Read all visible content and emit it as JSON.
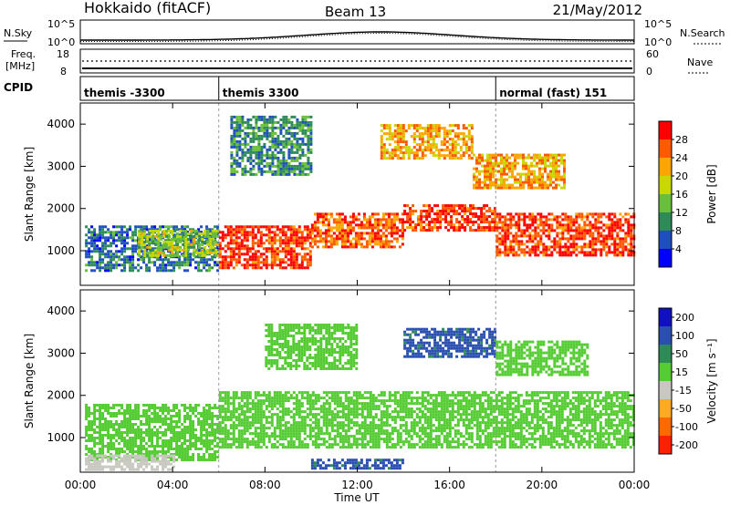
{
  "header": {
    "station": "Hokkaido (fitACF)",
    "beam": "Beam 13",
    "date": "21/May/2012"
  },
  "noise_panel": {
    "left_label": "N.Sky",
    "left_ticks": [
      "10^5",
      "10^0"
    ],
    "right_ticks": [
      "10^5",
      "10^0"
    ],
    "right_label": "N.Search"
  },
  "freq_panel": {
    "left_label_1": "Freq.",
    "left_label_2": "[MHz]",
    "left_ticks": [
      "18",
      "8"
    ],
    "right_ticks": [
      "60",
      "0"
    ],
    "right_label": "Nave"
  },
  "cpid": {
    "label": "CPID",
    "segments": [
      {
        "label": "themis -3300",
        "start_hour": 0
      },
      {
        "label": "themis 3300",
        "start_hour": 6
      },
      {
        "label": "normal (fast) 151",
        "start_hour": 18
      }
    ]
  },
  "chart_data": [
    {
      "type": "heatmap",
      "parameter": "power",
      "xlabel": "",
      "ylabel": "Slant Range [km]",
      "x_range_hours": [
        0,
        24
      ],
      "y_range_km": [
        180,
        4500
      ],
      "y_ticks": [
        1000,
        2000,
        3000,
        4000
      ],
      "colorbar": {
        "label": "Power [dB]",
        "ticks": [
          4,
          8,
          12,
          16,
          20,
          24,
          28
        ],
        "range": [
          0,
          32
        ],
        "colors": [
          "#0000ff",
          "#1f4fbf",
          "#2e8b57",
          "#6abf3a",
          "#c8d800",
          "#ffa500",
          "#ff5a00",
          "#ff0000"
        ]
      },
      "regions": [
        {
          "t0": 0.2,
          "t1": 6,
          "r0": 500,
          "r1": 1600,
          "value": 8
        },
        {
          "t0": 2.5,
          "t1": 6,
          "r0": 900,
          "r1": 1500,
          "value": 16
        },
        {
          "t0": 6,
          "t1": 10,
          "r0": 600,
          "r1": 1600,
          "value": 28
        },
        {
          "t0": 10,
          "t1": 14,
          "r0": 1100,
          "r1": 1900,
          "value": 26
        },
        {
          "t0": 14,
          "t1": 18,
          "r0": 1500,
          "r1": 2100,
          "value": 28
        },
        {
          "t0": 18,
          "t1": 24,
          "r0": 900,
          "r1": 1900,
          "value": 28
        },
        {
          "t0": 13,
          "t1": 17,
          "r0": 3200,
          "r1": 4000,
          "value": 22
        },
        {
          "t0": 17,
          "t1": 21,
          "r0": 2500,
          "r1": 3300,
          "value": 22
        },
        {
          "t0": 6.5,
          "t1": 10,
          "r0": 2800,
          "r1": 4200,
          "value": 10
        }
      ]
    },
    {
      "type": "heatmap",
      "parameter": "velocity",
      "xlabel": "Time UT",
      "ylabel": "Slant Range [km]",
      "x_range_hours": [
        0,
        24
      ],
      "x_ticks": [
        "00:00",
        "04:00",
        "08:00",
        "12:00",
        "16:00",
        "20:00",
        "00:00"
      ],
      "y_range_km": [
        180,
        4500
      ],
      "y_ticks": [
        1000,
        2000,
        3000,
        4000
      ],
      "colorbar": {
        "label": "Velocity [m s⁻¹]",
        "ticks": [
          200,
          100,
          50,
          15,
          -15,
          -50,
          -100,
          -200
        ],
        "colors": [
          "#1010c0",
          "#2a4fb0",
          "#2e8b57",
          "#55cc33",
          "#c8c8c0",
          "#ffaa22",
          "#ff6a00",
          "#ff2000"
        ]
      },
      "regions": [
        {
          "t0": 0.2,
          "t1": 6,
          "r0": 500,
          "r1": 1800,
          "value": 0
        },
        {
          "t0": 6,
          "t1": 24,
          "r0": 800,
          "r1": 2100,
          "value": 0
        },
        {
          "t0": 14,
          "t1": 18,
          "r0": 2900,
          "r1": 3600,
          "value": 60
        },
        {
          "t0": 8,
          "t1": 12,
          "r0": 2600,
          "r1": 3700,
          "value": 0
        },
        {
          "t0": 18,
          "t1": 22,
          "r0": 2500,
          "r1": 3300,
          "value": 0
        },
        {
          "t0": 0.2,
          "t1": 4,
          "r0": 250,
          "r1": 600,
          "value": -30
        },
        {
          "t0": 10,
          "t1": 14,
          "r0": 250,
          "r1": 500,
          "value": 60
        }
      ]
    }
  ]
}
